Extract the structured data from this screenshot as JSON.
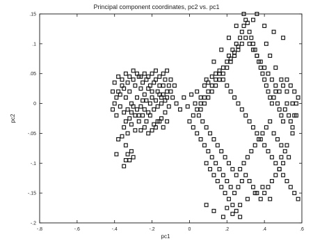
{
  "chart_data": {
    "type": "scatter",
    "title": "Principal component coordinates, pc2 vs. pc1",
    "xlabel": "pc1",
    "ylabel": "pc2",
    "xlim": [
      -0.8,
      0.6
    ],
    "ylim": [
      -0.2,
      0.15
    ],
    "xticks": [
      -0.8,
      -0.6,
      -0.4,
      -0.2,
      0,
      0.2,
      0.4,
      0.6
    ],
    "yticks": [
      -0.2,
      -0.15,
      -0.1,
      -0.05,
      0,
      0.05,
      0.1,
      0.15
    ],
    "grid": false,
    "legend": "none",
    "marker": "square",
    "marker_color": "#111111",
    "series": [
      {
        "points": [
          [
            -0.4,
            0.0
          ],
          [
            -0.39,
            0.01
          ],
          [
            -0.38,
            0.02
          ],
          [
            -0.37,
            0.015
          ],
          [
            -0.36,
            0.03
          ],
          [
            -0.35,
            0.025
          ],
          [
            -0.34,
            0.01
          ],
          [
            -0.33,
            0.035
          ],
          [
            -0.32,
            0.02
          ],
          [
            -0.31,
            0.0
          ],
          [
            -0.3,
            0.04
          ],
          [
            -0.29,
            0.03
          ],
          [
            -0.28,
            0.01
          ],
          [
            -0.27,
            0.045
          ],
          [
            -0.26,
            0.025
          ],
          [
            -0.25,
            0.035
          ],
          [
            -0.24,
            0.015
          ],
          [
            -0.23,
            0.04
          ],
          [
            -0.22,
            0.025
          ],
          [
            -0.21,
            0.03
          ],
          [
            -0.2,
            0.02
          ],
          [
            -0.19,
            0.035
          ],
          [
            -0.18,
            0.04
          ],
          [
            -0.17,
            0.02
          ],
          [
            -0.16,
            0.03
          ],
          [
            -0.15,
            0.01
          ],
          [
            -0.14,
            0.03
          ],
          [
            -0.13,
            0.04
          ],
          [
            -0.12,
            0.02
          ],
          [
            -0.11,
            0.03
          ],
          [
            -0.41,
            -0.01
          ],
          [
            -0.39,
            -0.02
          ],
          [
            -0.37,
            -0.005
          ],
          [
            -0.35,
            -0.015
          ],
          [
            -0.34,
            -0.03
          ],
          [
            -0.33,
            -0.01
          ],
          [
            -0.32,
            -0.025
          ],
          [
            -0.31,
            -0.015
          ],
          [
            -0.3,
            -0.005
          ],
          [
            -0.29,
            -0.02
          ],
          [
            -0.28,
            -0.01
          ],
          [
            -0.27,
            -0.02
          ],
          [
            -0.26,
            -0.005
          ],
          [
            -0.25,
            0.005
          ],
          [
            -0.24,
            -0.01
          ],
          [
            -0.23,
            0.005
          ],
          [
            -0.22,
            -0.015
          ],
          [
            -0.21,
            0.0
          ],
          [
            -0.2,
            0.01
          ],
          [
            -0.19,
            -0.01
          ],
          [
            -0.18,
            0.005
          ],
          [
            -0.17,
            -0.005
          ],
          [
            -0.16,
            0.015
          ],
          [
            -0.15,
            0.0
          ],
          [
            -0.14,
            0.015
          ],
          [
            -0.13,
            0.005
          ],
          [
            -0.12,
            0.01
          ],
          [
            -0.11,
            -0.005
          ],
          [
            -0.1,
            0.02
          ],
          [
            -0.09,
            0.01
          ],
          [
            -0.41,
            0.02
          ],
          [
            -0.4,
            0.035
          ],
          [
            -0.38,
            0.045
          ],
          [
            -0.36,
            0.04
          ],
          [
            -0.34,
            0.05
          ],
          [
            -0.32,
            0.045
          ],
          [
            -0.3,
            0.055
          ],
          [
            -0.28,
            0.05
          ],
          [
            -0.26,
            0.045
          ],
          [
            -0.24,
            0.05
          ],
          [
            -0.22,
            0.045
          ],
          [
            -0.2,
            0.05
          ],
          [
            -0.18,
            0.055
          ],
          [
            -0.16,
            0.045
          ],
          [
            -0.14,
            0.05
          ],
          [
            -0.12,
            0.055
          ],
          [
            -0.1,
            0.04
          ],
          [
            -0.08,
            0.03
          ],
          [
            -0.35,
            -0.04
          ],
          [
            -0.33,
            -0.05
          ],
          [
            -0.31,
            -0.035
          ],
          [
            -0.29,
            -0.045
          ],
          [
            -0.27,
            -0.03
          ],
          [
            -0.25,
            -0.02
          ],
          [
            -0.23,
            -0.03
          ],
          [
            -0.21,
            -0.02
          ],
          [
            -0.19,
            -0.035
          ],
          [
            -0.17,
            -0.03
          ],
          [
            -0.15,
            -0.025
          ],
          [
            -0.13,
            -0.015
          ],
          [
            -0.38,
            -0.06
          ],
          [
            -0.36,
            -0.055
          ],
          [
            -0.34,
            -0.07
          ],
          [
            -0.33,
            -0.085
          ],
          [
            -0.32,
            -0.095
          ],
          [
            -0.31,
            -0.08
          ],
          [
            -0.3,
            -0.09
          ],
          [
            -0.39,
            -0.085
          ],
          [
            -0.35,
            -0.105
          ],
          [
            -0.34,
            -0.095
          ],
          [
            -0.26,
            -0.045
          ],
          [
            -0.24,
            -0.04
          ],
          [
            -0.22,
            -0.05
          ],
          [
            -0.2,
            -0.045
          ],
          [
            -0.18,
            -0.04
          ],
          [
            -0.16,
            -0.03
          ],
          [
            -0.14,
            -0.04
          ],
          [
            -0.12,
            -0.03
          ],
          [
            -0.07,
            0.0
          ],
          [
            -0.05,
            -0.01
          ],
          [
            -0.03,
            0.01
          ],
          [
            -0.01,
            -0.005
          ],
          [
            0.01,
            0.015
          ],
          [
            0.03,
            0.0
          ],
          [
            0.04,
            0.02
          ],
          [
            0.06,
            0.01
          ],
          [
            0.08,
            0.03
          ],
          [
            0.09,
            0.04
          ],
          [
            0.1,
            0.035
          ],
          [
            0.12,
            0.045
          ],
          [
            0.14,
            0.05
          ],
          [
            0.16,
            0.055
          ],
          [
            0.18,
            0.06
          ],
          [
            0.2,
            0.07
          ],
          [
            0.21,
            0.08
          ],
          [
            0.22,
            0.075
          ],
          [
            0.23,
            0.09
          ],
          [
            0.24,
            0.085
          ],
          [
            0.25,
            0.1
          ],
          [
            0.26,
            0.095
          ],
          [
            0.27,
            0.11
          ],
          [
            0.28,
            0.12
          ],
          [
            0.29,
            0.13
          ],
          [
            0.3,
            0.14
          ],
          [
            0.31,
            0.135
          ],
          [
            0.32,
            0.12
          ],
          [
            0.33,
            0.11
          ],
          [
            0.34,
            0.1
          ],
          [
            0.35,
            0.09
          ],
          [
            0.36,
            0.08
          ],
          [
            0.37,
            0.07
          ],
          [
            0.38,
            0.06
          ],
          [
            0.39,
            0.05
          ],
          [
            0.4,
            0.04
          ],
          [
            0.41,
            0.03
          ],
          [
            0.42,
            0.02
          ],
          [
            0.43,
            0.01
          ],
          [
            0.44,
            0.0
          ],
          [
            0.45,
            0.01
          ],
          [
            0.46,
            0.02
          ],
          [
            0.47,
            0.0
          ],
          [
            0.48,
            -0.01
          ],
          [
            0.49,
            -0.02
          ],
          [
            0.5,
            -0.03
          ],
          [
            0.51,
            -0.01
          ],
          [
            0.52,
            0.0
          ],
          [
            0.53,
            -0.02
          ],
          [
            0.54,
            -0.03
          ],
          [
            0.55,
            -0.04
          ],
          [
            0.56,
            -0.02
          ],
          [
            0.57,
            0.0
          ],
          [
            0.58,
            0.01
          ],
          [
            0.56,
            0.02
          ],
          [
            0.54,
            0.03
          ],
          [
            0.52,
            0.04
          ],
          [
            0.5,
            0.03
          ],
          [
            0.48,
            0.02
          ],
          [
            0.46,
            0.03
          ],
          [
            0.44,
            0.04
          ],
          [
            0.42,
            0.05
          ],
          [
            0.4,
            0.06
          ],
          [
            0.38,
            0.07
          ],
          [
            0.36,
            0.08
          ],
          [
            0.34,
            0.09
          ],
          [
            0.32,
            0.1
          ],
          [
            0.3,
            0.11
          ],
          [
            0.28,
            0.1
          ],
          [
            0.26,
            0.09
          ],
          [
            0.24,
            0.08
          ],
          [
            0.22,
            0.07
          ],
          [
            0.2,
            0.06
          ],
          [
            0.18,
            0.05
          ],
          [
            0.16,
            0.04
          ],
          [
            0.14,
            0.03
          ],
          [
            0.12,
            0.02
          ],
          [
            0.1,
            0.01
          ],
          [
            0.08,
            0.0
          ],
          [
            0.06,
            -0.01
          ],
          [
            0.05,
            -0.02
          ],
          [
            0.07,
            -0.03
          ],
          [
            0.09,
            -0.04
          ],
          [
            0.11,
            -0.05
          ],
          [
            0.13,
            -0.06
          ],
          [
            0.15,
            -0.07
          ],
          [
            0.17,
            -0.08
          ],
          [
            0.19,
            -0.09
          ],
          [
            0.21,
            -0.1
          ],
          [
            0.23,
            -0.11
          ],
          [
            0.25,
            -0.12
          ],
          [
            0.27,
            -0.11
          ],
          [
            0.29,
            -0.1
          ],
          [
            0.31,
            -0.09
          ],
          [
            0.33,
            -0.08
          ],
          [
            0.35,
            -0.07
          ],
          [
            0.37,
            -0.06
          ],
          [
            0.39,
            -0.05
          ],
          [
            0.41,
            -0.04
          ],
          [
            0.43,
            -0.03
          ],
          [
            0.45,
            -0.05
          ],
          [
            0.47,
            -0.06
          ],
          [
            0.49,
            -0.07
          ],
          [
            0.51,
            -0.08
          ],
          [
            0.53,
            -0.09
          ],
          [
            0.5,
            -0.1
          ],
          [
            0.48,
            -0.11
          ],
          [
            0.46,
            -0.12
          ],
          [
            0.44,
            -0.13
          ],
          [
            0.42,
            -0.14
          ],
          [
            0.4,
            -0.15
          ],
          [
            0.38,
            -0.16
          ],
          [
            0.36,
            -0.15
          ],
          [
            0.34,
            -0.14
          ],
          [
            0.32,
            -0.13
          ],
          [
            0.3,
            -0.12
          ],
          [
            0.28,
            -0.13
          ],
          [
            0.26,
            -0.14
          ],
          [
            0.24,
            -0.15
          ],
          [
            0.22,
            -0.14
          ],
          [
            0.2,
            -0.13
          ],
          [
            0.18,
            -0.12
          ],
          [
            0.16,
            -0.11
          ],
          [
            0.14,
            -0.1
          ],
          [
            0.12,
            -0.09
          ],
          [
            0.1,
            -0.08
          ],
          [
            0.08,
            -0.07
          ],
          [
            0.06,
            -0.06
          ],
          [
            0.04,
            -0.05
          ],
          [
            0.02,
            -0.04
          ],
          [
            0.0,
            -0.03
          ],
          [
            0.02,
            -0.02
          ],
          [
            0.04,
            -0.01
          ],
          [
            0.06,
            0.0
          ],
          [
            0.08,
            0.01
          ],
          [
            0.1,
            0.02
          ],
          [
            0.12,
            0.03
          ],
          [
            0.14,
            0.04
          ],
          [
            0.16,
            0.05
          ],
          [
            0.18,
            0.04
          ],
          [
            0.2,
            0.03
          ],
          [
            0.22,
            0.02
          ],
          [
            0.24,
            0.01
          ],
          [
            0.26,
            0.0
          ],
          [
            0.28,
            -0.01
          ],
          [
            0.3,
            -0.02
          ],
          [
            0.32,
            -0.03
          ],
          [
            0.34,
            -0.04
          ],
          [
            0.36,
            -0.05
          ],
          [
            0.38,
            -0.06
          ],
          [
            0.4,
            -0.07
          ],
          [
            0.42,
            -0.08
          ],
          [
            0.44,
            -0.09
          ],
          [
            0.46,
            -0.1
          ],
          [
            0.48,
            -0.11
          ],
          [
            0.5,
            -0.12
          ],
          [
            0.52,
            -0.13
          ],
          [
            0.54,
            -0.14
          ],
          [
            0.56,
            -0.15
          ],
          [
            0.58,
            -0.16
          ],
          [
            0.09,
            -0.17
          ],
          [
            0.13,
            -0.18
          ],
          [
            0.18,
            -0.19
          ],
          [
            0.2,
            -0.175
          ],
          [
            0.23,
            -0.185
          ],
          [
            0.27,
            -0.17
          ],
          [
            0.31,
            -0.16
          ],
          [
            0.35,
            -0.15
          ],
          [
            0.39,
            -0.14
          ],
          [
            0.43,
            -0.16
          ],
          [
            0.29,
            0.15
          ],
          [
            0.34,
            0.14
          ],
          [
            0.4,
            0.13
          ],
          [
            0.45,
            0.12
          ],
          [
            0.5,
            0.11
          ],
          [
            0.36,
            0.15
          ],
          [
            0.25,
            0.13
          ],
          [
            0.21,
            0.11
          ],
          [
            0.17,
            0.09
          ],
          [
            0.13,
            0.07
          ],
          [
            0.41,
            0.1
          ],
          [
            0.43,
            0.08
          ],
          [
            0.46,
            0.06
          ],
          [
            0.49,
            0.04
          ],
          [
            0.52,
            0.02
          ],
          [
            0.55,
            0.0
          ],
          [
            0.57,
            -0.02
          ],
          [
            0.55,
            -0.05
          ],
          [
            0.52,
            -0.07
          ],
          [
            0.49,
            -0.09
          ],
          [
            0.09,
            -0.1
          ],
          [
            0.11,
            -0.11
          ],
          [
            0.13,
            -0.12
          ],
          [
            0.15,
            -0.13
          ],
          [
            0.17,
            -0.14
          ],
          [
            0.19,
            -0.15
          ],
          [
            0.21,
            -0.16
          ],
          [
            0.23,
            -0.17
          ],
          [
            0.25,
            -0.18
          ],
          [
            0.27,
            -0.19
          ]
        ]
      }
    ]
  }
}
